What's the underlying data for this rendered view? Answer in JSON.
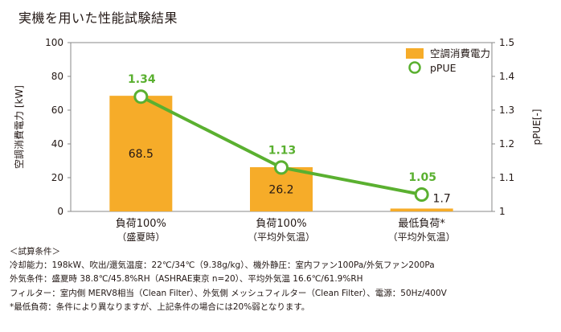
{
  "title": "実機を用いた性能試験結果",
  "chart_data": {
    "type": "bar+line",
    "categories": [
      {
        "line1": "負荷100%",
        "line2": "（盛夏時）"
      },
      {
        "line1": "負荷100%",
        "line2": "（平均外気温）"
      },
      {
        "line1": "最低負荷*",
        "line2": "（平均外気温）"
      }
    ],
    "series": [
      {
        "name": "空調消費電力",
        "type": "bar",
        "axis": "left",
        "values": [
          68.5,
          26.2,
          1.7
        ],
        "color": "#f6ac29"
      },
      {
        "name": "pPUE",
        "type": "line",
        "axis": "right",
        "values": [
          1.34,
          1.13,
          1.05
        ],
        "color": "#5ab030"
      }
    ],
    "bar_labels": [
      "68.5",
      "26.2",
      "1.7"
    ],
    "line_labels": [
      "1.34",
      "1.13",
      "1.05"
    ],
    "ylabel": "空調消費電力 [kW]",
    "y2label": "pPUE[-]",
    "ylim": [
      0,
      100
    ],
    "y2lim": [
      1,
      1.5
    ],
    "yticks": [
      "0",
      "20",
      "40",
      "60",
      "80",
      "100"
    ],
    "y2ticks": [
      "1",
      "1.1",
      "1.2",
      "1.3",
      "1.4",
      "1.5"
    ],
    "grid": false,
    "legend_position": "top-right"
  },
  "notes": {
    "heading": "＜試算条件＞",
    "lines": [
      "冷却能力：198kW、吹出/還気温度：22℃/34℃（9.38g/kg）、機外静圧：室内ファン100Pa/外気ファン200Pa",
      "外気条件：盛夏時 38.8℃/45.8%RH（ASHRAE東京 n=20）、平均外気温 16.6℃/61.9%RH",
      "フィルター：室内側 MERV8相当（Clean Filter）、外気側 メッシュフィルター（Clean Filter）、電源：50Hz/400V"
    ],
    "footnote": "*最低負荷：条件により異なりますが、上記条件の場合には20%弱となります。"
  }
}
